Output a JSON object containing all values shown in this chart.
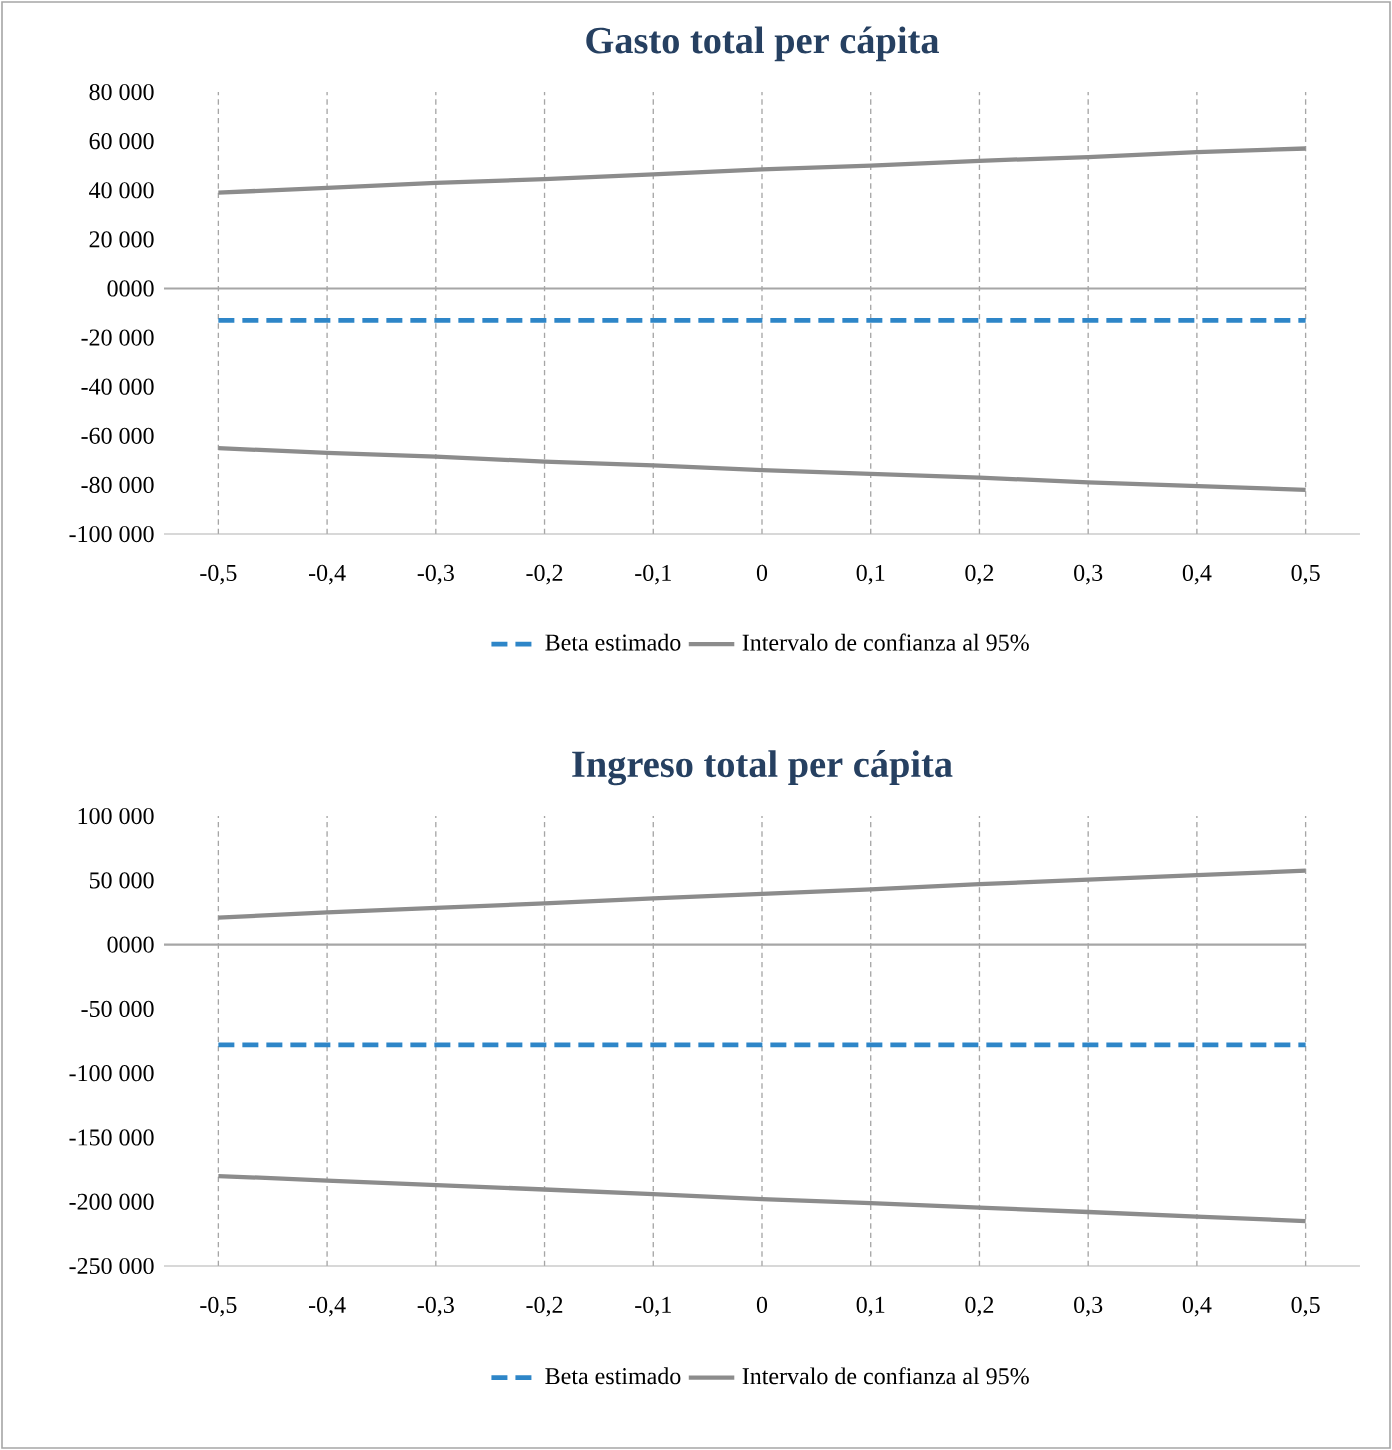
{
  "chart_data": [
    {
      "type": "line",
      "title": "Gasto total per cápita",
      "categories": [
        "-0,5",
        "-0,4",
        "-0,3",
        "-0,2",
        "-0,1",
        "0",
        "0,1",
        "0,2",
        "0,3",
        "0,4",
        "0,5"
      ],
      "ylim": [
        -100000,
        80000
      ],
      "yticks": [
        {
          "value": 80000,
          "label": "80 000"
        },
        {
          "value": 60000,
          "label": "60 000"
        },
        {
          "value": 40000,
          "label": "40 000"
        },
        {
          "value": 20000,
          "label": "20 000"
        },
        {
          "value": 0,
          "label": "0000"
        },
        {
          "value": -20000,
          "label": "-20 000"
        },
        {
          "value": -40000,
          "label": "-40 000"
        },
        {
          "value": -60000,
          "label": "-60 000"
        },
        {
          "value": -80000,
          "label": "-80 000"
        },
        {
          "value": -100000,
          "label": "-100 000"
        }
      ],
      "series": [
        {
          "name": "Beta estimado",
          "color": "#2e86c8",
          "line_style": "dashed",
          "values": [
            -13000,
            -13000,
            -13000,
            -13000,
            -13000,
            -13000,
            -13000,
            -13000,
            -13000,
            -13000,
            -13000
          ]
        },
        {
          "name": "Intervalo de confianza al 95%",
          "color": "#8c8c8c",
          "values": [
            39000,
            41000,
            43000,
            44500,
            46500,
            48500,
            50000,
            52000,
            53500,
            55500,
            57000
          ]
        },
        {
          "color": "#8c8c8c",
          "values": [
            -65000,
            -67000,
            -68500,
            -70500,
            -72000,
            -74000,
            -75500,
            -77000,
            -79000,
            -80500,
            -82000
          ]
        }
      ],
      "ref_lines": [
        {
          "axis": "y",
          "value": 0,
          "color": "#a6a6a6"
        }
      ],
      "legend": "bottom",
      "marker": "none",
      "grid": "x"
    },
    {
      "type": "line",
      "title": "Ingreso total per cápita",
      "categories": [
        "-0,5",
        "-0,4",
        "-0,3",
        "-0,2",
        "-0,1",
        "0",
        "0,1",
        "0,2",
        "0,3",
        "0,4",
        "0,5"
      ],
      "ylim": [
        -250000,
        100000
      ],
      "yticks": [
        {
          "value": 100000,
          "label": "100 000"
        },
        {
          "value": 50000,
          "label": "50 000"
        },
        {
          "value": 0,
          "label": "0000"
        },
        {
          "value": -50000,
          "label": "-50 000"
        },
        {
          "value": -100000,
          "label": "-100 000"
        },
        {
          "value": -150000,
          "label": "-150 000"
        },
        {
          "value": -200000,
          "label": "-200 000"
        },
        {
          "value": -250000,
          "label": "-250 000"
        }
      ],
      "series": [
        {
          "name": "Beta estimado",
          "color": "#2e86c8",
          "line_style": "dashed",
          "values": [
            -78000,
            -78000,
            -78000,
            -78000,
            -78000,
            -78000,
            -78000,
            -78000,
            -78000,
            -78000,
            -78000
          ]
        },
        {
          "name": "Intervalo de confianza al 95%",
          "color": "#8c8c8c",
          "values": [
            21000,
            25000,
            28500,
            32000,
            36000,
            39500,
            43000,
            47000,
            50500,
            54000,
            57500
          ]
        },
        {
          "color": "#8c8c8c",
          "values": [
            -180000,
            -183500,
            -187000,
            -190500,
            -194000,
            -198000,
            -201000,
            -204500,
            -208000,
            -211500,
            -215000
          ]
        }
      ],
      "ref_lines": [
        {
          "axis": "y",
          "value": 0,
          "color": "#a6a6a6"
        }
      ],
      "legend": "bottom",
      "marker": "none",
      "grid": "x"
    }
  ]
}
